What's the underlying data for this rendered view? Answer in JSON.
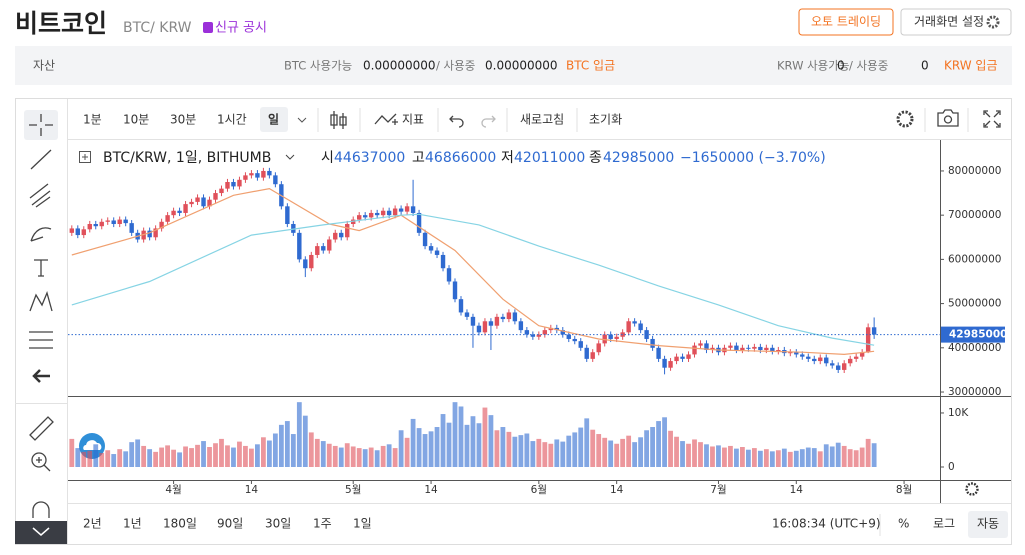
{
  "header": {
    "title": "비트코인",
    "pair": "BTC/ KRW",
    "notice": "신규 공시",
    "auto_trading": "오토 트레이딩",
    "settings": "거래화면 설정"
  },
  "assets": {
    "label": "자산",
    "btc": {
      "available_label": "BTC 사용가능",
      "available": "0.00000000",
      "in_use_label": "/ 사용중",
      "in_use": "0.00000000",
      "deposit": "BTC 입금"
    },
    "krw": {
      "available_label": "KRW 사용가능",
      "available": "0",
      "in_use_label": "/ 사용중",
      "in_use": "0",
      "deposit": "KRW 입금"
    }
  },
  "toolbar": {
    "intervals": [
      "1분",
      "10분",
      "30분",
      "1시간",
      "일"
    ],
    "indicators": "지표",
    "refresh": "새로고침",
    "reset": "초기화"
  },
  "footer": {
    "ranges": [
      "2년",
      "1년",
      "180일",
      "90일",
      "30일",
      "1주",
      "1일"
    ],
    "time": "16:08:34 (UTC+9)",
    "percent": "%",
    "log": "로그",
    "auto": "자동"
  },
  "chart_data": {
    "type": "candlestick",
    "symbol": "BTC/KRW, 1일, BITHUMB",
    "legend_labels": {
      "open": "시",
      "high": "고",
      "low": "저",
      "close": "종"
    },
    "change": "−1650000 (−3.70%)",
    "up_color": "#e0505a",
    "down_color": "#2f6ad0",
    "open": [
      66000000,
      67000000,
      65500000,
      66800000,
      68000000,
      67500000,
      68500000,
      68800000,
      68000000,
      69000000,
      68200000,
      66000000,
      64500000,
      66500000,
      65000000,
      67000000,
      68500000,
      70000000,
      71000000,
      70500000,
      72500000,
      73000000,
      74000000,
      72000000,
      73500000,
      75000000,
      76000000,
      77500000,
      76500000,
      78000000,
      79000000,
      79500000,
      78500000,
      80000000,
      79000000,
      77000000,
      72000000,
      68000000,
      66000000,
      60000000,
      58000000,
      61000000,
      63000000,
      62000000,
      64500000,
      66000000,
      65000000,
      68000000,
      69000000,
      70000000,
      69500000,
      70500000,
      70000000,
      71000000,
      70000000,
      71500000,
      70800000,
      72000000,
      70500000,
      66000000,
      63000000,
      62000000,
      61000000,
      58000000,
      55000000,
      51000000,
      48000000,
      47000000,
      45000000,
      43500000,
      46000000,
      45000000,
      47000000,
      46500000,
      48000000,
      46000000,
      44000000,
      43000000,
      42500000,
      43000000,
      44000000,
      44500000,
      44000000,
      43000000,
      42000000,
      41500000,
      40000000,
      37500000,
      39000000,
      41000000,
      43000000,
      42000000,
      42500000,
      43500000,
      46000000,
      45500000,
      44000000,
      42000000,
      40000000,
      37500000,
      35500000,
      37000000,
      38000000,
      37500000,
      38500000,
      40500000,
      41000000,
      39500000,
      40000000,
      39000000,
      40000000,
      40500000,
      39500000,
      40000000,
      39800000,
      40200000,
      39500000,
      40000000,
      39200000,
      39500000,
      38800000,
      39000000,
      38500000,
      38000000,
      37500000,
      37000000,
      37800000,
      36500000,
      36000000,
      35000000,
      36500000,
      37500000,
      38000000,
      39000000,
      44637000
    ],
    "high": [
      67700000,
      67700000,
      67500000,
      68700000,
      68700000,
      69200000,
      69500000,
      69500000,
      69700000,
      69700000,
      68900000,
      66700000,
      67200000,
      67200000,
      67700000,
      69200000,
      70700000,
      71700000,
      71700000,
      73200000,
      73700000,
      74700000,
      74700000,
      74200000,
      75700000,
      76700000,
      78200000,
      78200000,
      78700000,
      79700000,
      80200000,
      80200000,
      80700000,
      80700000,
      79700000,
      77700000,
      72700000,
      68700000,
      66700000,
      60700000,
      61700000,
      63700000,
      63700000,
      65200000,
      66700000,
      66700000,
      68700000,
      69700000,
      70700000,
      70700000,
      71200000,
      71200000,
      71700000,
      71700000,
      72200000,
      72200000,
      72700000,
      78000000,
      71200000,
      66700000,
      63700000,
      62700000,
      61700000,
      58700000,
      55700000,
      51700000,
      48700000,
      47700000,
      45700000,
      46700000,
      46700000,
      47700000,
      47700000,
      48700000,
      48700000,
      46700000,
      44700000,
      43700000,
      43700000,
      44700000,
      45200000,
      45200000,
      44700000,
      43700000,
      42700000,
      42200000,
      40700000,
      39700000,
      41700000,
      43700000,
      43700000,
      43200000,
      44200000,
      46700000,
      46700000,
      46200000,
      44700000,
      42700000,
      40700000,
      38200000,
      37700000,
      38700000,
      38700000,
      39200000,
      41200000,
      41700000,
      41700000,
      40700000,
      40700000,
      40700000,
      41200000,
      41200000,
      40700000,
      40700000,
      40900000,
      40900000,
      40700000,
      40700000,
      40200000,
      40200000,
      39700000,
      39700000,
      39200000,
      38700000,
      38200000,
      38500000,
      38500000,
      37200000,
      36700000,
      37200000,
      38200000,
      38700000,
      39700000,
      45500000,
      46866000
    ],
    "low": [
      65300000,
      64800000,
      64800000,
      66100000,
      66800000,
      66800000,
      67800000,
      67300000,
      67300000,
      67500000,
      65300000,
      63800000,
      63800000,
      64300000,
      64300000,
      66300000,
      67800000,
      69300000,
      69800000,
      69800000,
      71800000,
      72300000,
      71300000,
      71300000,
      72800000,
      74300000,
      75300000,
      75800000,
      75800000,
      77300000,
      78300000,
      77800000,
      77800000,
      78300000,
      76300000,
      71300000,
      67300000,
      65300000,
      59300000,
      56000000,
      57300000,
      60300000,
      61300000,
      61300000,
      63800000,
      64300000,
      64300000,
      67300000,
      68300000,
      68800000,
      68800000,
      69300000,
      69300000,
      69300000,
      69300000,
      70100000,
      70100000,
      69800000,
      65300000,
      62300000,
      61300000,
      60300000,
      57300000,
      54300000,
      50300000,
      47300000,
      46300000,
      40000000,
      42800000,
      42800000,
      39500000,
      44300000,
      45800000,
      45800000,
      45300000,
      43300000,
      42300000,
      41800000,
      41800000,
      42300000,
      43300000,
      43300000,
      42300000,
      41300000,
      40800000,
      39300000,
      36800000,
      36800000,
      38300000,
      40300000,
      41300000,
      41300000,
      41800000,
      42800000,
      44800000,
      43300000,
      41300000,
      39300000,
      36800000,
      34000000,
      34800000,
      36300000,
      36800000,
      36800000,
      37800000,
      39800000,
      38800000,
      38800000,
      38300000,
      38300000,
      39300000,
      38800000,
      38800000,
      39100000,
      39100000,
      38800000,
      38800000,
      38500000,
      38500000,
      38100000,
      38100000,
      37800000,
      37300000,
      36800000,
      36300000,
      36300000,
      35800000,
      35300000,
      34300000,
      34300000,
      35800000,
      36800000,
      37300000,
      38800000,
      42011000
    ],
    "close": [
      67000000,
      65500000,
      66800000,
      68000000,
      67500000,
      68500000,
      68800000,
      68000000,
      69000000,
      68200000,
      66000000,
      64500000,
      66500000,
      65000000,
      67000000,
      68500000,
      70000000,
      71000000,
      70500000,
      72500000,
      73000000,
      74000000,
      72000000,
      73500000,
      75000000,
      76000000,
      77500000,
      76500000,
      78000000,
      79000000,
      79500000,
      78500000,
      80000000,
      79000000,
      77000000,
      72000000,
      68000000,
      66000000,
      60000000,
      58000000,
      61000000,
      63000000,
      62000000,
      64500000,
      66000000,
      65000000,
      68000000,
      69000000,
      70000000,
      69500000,
      70500000,
      70000000,
      71000000,
      70000000,
      71500000,
      70800000,
      72000000,
      70500000,
      66000000,
      63000000,
      62000000,
      61000000,
      58000000,
      55000000,
      51000000,
      48000000,
      47000000,
      45000000,
      43500000,
      46000000,
      45000000,
      47000000,
      46500000,
      48000000,
      46000000,
      44000000,
      43000000,
      42500000,
      43000000,
      44000000,
      44500000,
      44000000,
      43000000,
      42000000,
      41500000,
      40000000,
      37500000,
      39000000,
      41000000,
      43000000,
      42000000,
      42500000,
      43500000,
      46000000,
      45500000,
      44000000,
      42000000,
      40000000,
      37500000,
      35500000,
      37000000,
      38000000,
      37500000,
      38500000,
      40500000,
      41000000,
      39500000,
      40000000,
      39000000,
      40000000,
      40500000,
      39500000,
      40000000,
      39800000,
      40200000,
      39500000,
      40000000,
      39200000,
      39500000,
      38800000,
      39000000,
      38500000,
      38000000,
      37500000,
      37000000,
      37800000,
      36500000,
      36000000,
      35000000,
      36500000,
      37500000,
      38000000,
      39000000,
      44637000,
      42985000
    ],
    "volume": [
      5200,
      3500,
      2800,
      3000,
      4200,
      2600,
      3100,
      2400,
      3300,
      2900,
      4600,
      5100,
      3900,
      3300,
      2800,
      3600,
      4000,
      3200,
      2700,
      3800,
      3500,
      4100,
      4800,
      3700,
      4400,
      5200,
      4000,
      3600,
      4700,
      3900,
      3400,
      4200,
      5500,
      4900,
      6200,
      7800,
      8500,
      6100,
      12000,
      9500,
      6400,
      5200,
      4800,
      4300,
      3900,
      3600,
      4400,
      3800,
      3500,
      3300,
      3600,
      3100,
      3900,
      4200,
      3500,
      6800,
      5400,
      8900,
      7200,
      6100,
      6600,
      7400,
      9800,
      8200,
      12000,
      11200,
      7800,
      9400,
      8100,
      11000,
      9600,
      6800,
      7400,
      6500,
      5600,
      5900,
      6200,
      4800,
      5200,
      4600,
      4300,
      5100,
      4700,
      5800,
      6400,
      7300,
      9000,
      6900,
      6100,
      5400,
      4900,
      4300,
      5200,
      5800,
      4600,
      5500,
      6800,
      7400,
      8500,
      9200,
      6700,
      5600,
      4800,
      4300,
      5100,
      4600,
      4200,
      3800,
      4000,
      3600,
      3900,
      3400,
      3700,
      3200,
      3500,
      3000,
      3300,
      2900,
      3100,
      3400,
      2800,
      3000,
      3300,
      3600,
      3500,
      2900,
      4200,
      3800,
      4500,
      3900,
      3300,
      3100,
      3600,
      5200,
      4400
    ],
    "lines": [
      {
        "color": "#f0a070",
        "x": [
          0,
          13,
          27,
          33,
          43,
          48,
          55,
          64,
          72,
          78,
          88,
          98,
          108,
          122,
          129,
          134
        ],
        "values": [
          61000000,
          66000000,
          74500000,
          76000000,
          68000000,
          66500000,
          70000000,
          62000000,
          51000000,
          45000000,
          42000000,
          40500000,
          39500000,
          39000000,
          38500000,
          39200000
        ]
      },
      {
        "color": "#86d4e4",
        "x": [
          0,
          13,
          30,
          42,
          55,
          58,
          68,
          78,
          88,
          98,
          108,
          118,
          127,
          134
        ],
        "values": [
          49700000,
          55000000,
          65500000,
          67800000,
          70000000,
          70200000,
          67800000,
          63000000,
          58700000,
          54000000,
          49700000,
          45000000,
          42200000,
          40600000
        ]
      }
    ],
    "xlim": [
      -0.3,
      145
    ],
    "xticks": [
      {
        "value": 17,
        "label": "4월"
      },
      {
        "value": 30,
        "label": "14"
      },
      {
        "value": 47,
        "label": "5월"
      },
      {
        "value": 60,
        "label": "14"
      },
      {
        "value": 78,
        "label": "6월"
      },
      {
        "value": 91,
        "label": "14"
      },
      {
        "value": 108,
        "label": "7월"
      },
      {
        "value": 121,
        "label": "14"
      },
      {
        "value": 139,
        "label": "8월"
      }
    ],
    "ylim": [
      29100000,
      87000000
    ],
    "yticks": [
      30000000,
      40000000,
      50000000,
      60000000,
      70000000,
      80000000
    ],
    "volume_ylim": [
      0,
      12400
    ],
    "volume_yticks": [
      0,
      {
        "value": 10000,
        "label": "10K"
      }
    ]
  }
}
